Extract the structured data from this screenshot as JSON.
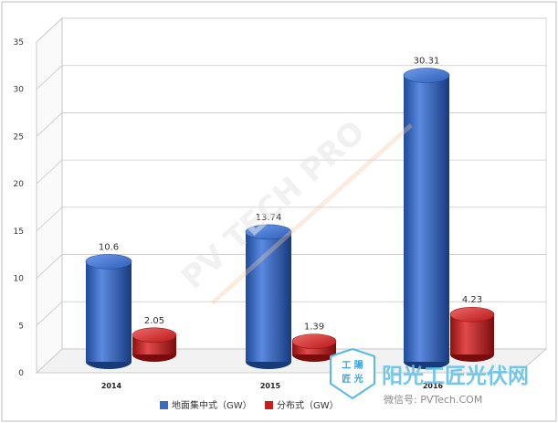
{
  "chart_data": {
    "type": "bar",
    "style": "3d-cylinder",
    "categories": [
      "2014",
      "2015",
      "2016"
    ],
    "series": [
      {
        "name": "地面集中式（GW）",
        "color": "#3a6bc4",
        "values": [
          10.6,
          13.74,
          30.31
        ],
        "labels": [
          "10.6",
          "13.74",
          "30.31"
        ]
      },
      {
        "name": "分布式（GW）",
        "color": "#c81e1e",
        "values": [
          2.05,
          1.39,
          4.23
        ],
        "labels": [
          "2.05",
          "1.39",
          "4.23"
        ]
      }
    ],
    "yticks": [
      "0",
      "5",
      "10",
      "15",
      "20",
      "25",
      "30",
      "35"
    ],
    "ylim": [
      0,
      35
    ],
    "grid": true,
    "legend_position": "bottom"
  },
  "watermark": {
    "diagonal_text": "PV TECH PRO",
    "logo_top": "工 陽",
    "logo_bottom": "匠 光",
    "brand_text": "阳光工匠光伏网",
    "wechat_text": "微信号: PVTech.COM"
  }
}
